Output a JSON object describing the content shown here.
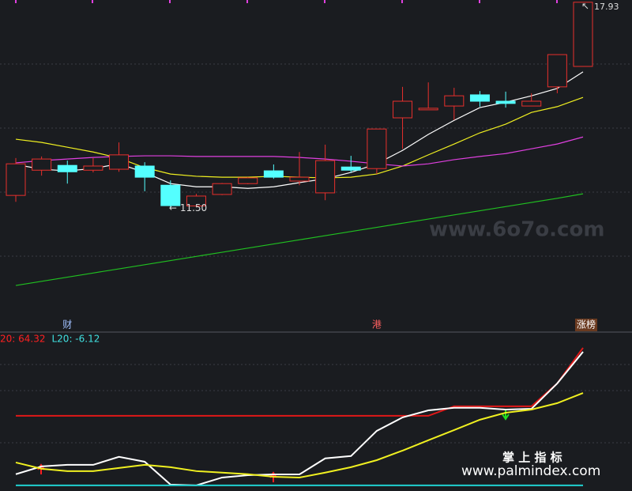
{
  "chart_data": [
    {
      "type": "candlestick",
      "categories": [
        null,
        null,
        "财",
        null,
        null,
        null,
        null,
        null,
        null,
        null,
        null,
        null,
        null,
        null,
        "港",
        null,
        null,
        null,
        null,
        null,
        null,
        null,
        "涨榜"
      ],
      "open": [
        11.88,
        12.67,
        12.82,
        12.67,
        12.7,
        12.8,
        12.2,
        11.55,
        11.91,
        12.25,
        12.65,
        12.33,
        11.96,
        12.77,
        12.72,
        14.31,
        14.56,
        14.68,
        15.03,
        14.83,
        14.68,
        15.28,
        15.92
      ],
      "high": [
        13.05,
        13.1,
        12.97,
        13.05,
        13.54,
        12.92,
        12.35,
        11.93,
        12.27,
        12.45,
        12.85,
        13.24,
        13.47,
        13.12,
        13.96,
        15.28,
        15.42,
        15.25,
        15.15,
        15.13,
        15.08,
        16.29,
        17.93
      ],
      "low": [
        11.68,
        12.5,
        12.25,
        12.6,
        12.62,
        12.01,
        11.5,
        11.51,
        11.89,
        12.23,
        12.4,
        12.2,
        11.73,
        12.6,
        12.55,
        13.34,
        14.56,
        14.24,
        14.66,
        14.63,
        14.68,
        15.08,
        15.92
      ],
      "close": [
        12.87,
        13.02,
        12.62,
        12.8,
        13.15,
        12.45,
        11.56,
        11.86,
        12.25,
        12.43,
        12.45,
        12.45,
        12.97,
        12.67,
        13.96,
        14.83,
        14.61,
        15.0,
        14.83,
        14.76,
        14.83,
        16.29,
        17.93
      ],
      "up_color": "#e8302c",
      "down_color": "#54ffff",
      "lines": [
        {
          "color": "#ffffff",
          "values": [
            12.85,
            12.7,
            12.65,
            12.72,
            12.87,
            12.6,
            12.25,
            12.15,
            12.15,
            12.1,
            12.15,
            12.28,
            12.4,
            12.6,
            12.87,
            13.29,
            13.79,
            14.23,
            14.63,
            14.8,
            15.0,
            15.23,
            15.75
          ]
        },
        {
          "color": "#f0f020",
          "values": [
            13.64,
            13.54,
            13.39,
            13.24,
            13.05,
            12.75,
            12.55,
            12.48,
            12.45,
            12.45,
            12.48,
            12.45,
            12.43,
            12.45,
            12.55,
            12.8,
            13.15,
            13.49,
            13.84,
            14.11,
            14.48,
            14.66,
            14.95
          ]
        },
        {
          "color": "#e040e0",
          "values": [
            12.9,
            12.97,
            13.02,
            13.07,
            13.1,
            13.12,
            13.12,
            13.1,
            13.1,
            13.1,
            13.1,
            13.07,
            13.02,
            12.95,
            12.87,
            12.8,
            12.87,
            13.0,
            13.1,
            13.19,
            13.34,
            13.49,
            13.71
          ]
        },
        {
          "color": "#20c020",
          "values": [
            9.06,
            9.19,
            9.32,
            9.45,
            9.58,
            9.71,
            9.84,
            9.97,
            10.1,
            10.23,
            10.36,
            10.49,
            10.62,
            10.75,
            10.88,
            11.01,
            11.14,
            11.27,
            11.4,
            11.53,
            11.66,
            11.79,
            11.93
          ]
        }
      ],
      "ylim": [
        7.6,
        18.0
      ],
      "low_label": "11.50",
      "high_label": "17.93",
      "watermark": "www.6o7o.com"
    },
    {
      "type": "line",
      "legend": [
        {
          "text": "20: 64.32",
          "color": "#ff2020"
        },
        {
          "text": "L20: -6.12",
          "color": "#40e0e0"
        }
      ],
      "series": [
        {
          "color": "#e01818",
          "values": [
            29.5,
            29.5,
            29.5,
            29.5,
            29.5,
            29.5,
            29.5,
            29.5,
            29.5,
            29.5,
            29.5,
            29.5,
            29.5,
            29.5,
            29.5,
            29.5,
            29.5,
            34.4,
            34.4,
            34.4,
            34.4,
            46.1,
            64.32
          ]
        },
        {
          "color": "#ffffff",
          "values": [
            -0.4,
            3.6,
            4.4,
            4.4,
            8.5,
            6.0,
            -5.7,
            -6.1,
            -2.1,
            -0.9,
            -0.5,
            -0.5,
            7.7,
            8.9,
            21.8,
            28.7,
            32.3,
            33.6,
            33.6,
            32.7,
            33.1,
            46.1,
            62.3
          ]
        },
        {
          "color": "#f0f020",
          "values": [
            5.6,
            2.4,
            1.2,
            1.2,
            2.8,
            4.4,
            3.2,
            1.2,
            0.4,
            -0.4,
            -1.7,
            -2.1,
            0.4,
            3.2,
            6.8,
            11.7,
            17.0,
            22.2,
            27.5,
            31.1,
            32.7,
            36.0,
            41.2
          ]
        },
        {
          "color": "#20d0d0",
          "values": [
            -6.12,
            -6.12,
            -6.12,
            -6.12,
            -6.12,
            -6.12,
            -6.12,
            -6.12,
            -6.12,
            -6.12,
            -6.12,
            -6.12,
            -6.12,
            -6.12,
            -6.12,
            -6.12,
            -6.12,
            -6.12,
            -6.12,
            -6.12,
            -6.12,
            -6.12,
            -6.12
          ]
        }
      ],
      "ylim": [
        -9,
        72.4
      ],
      "watermark_title": "掌 上 指 标",
      "watermark_url": "www.palmindex.com"
    }
  ]
}
